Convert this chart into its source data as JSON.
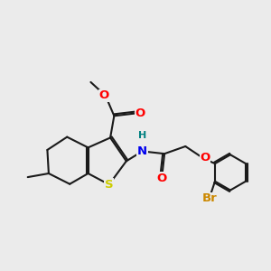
{
  "bg_color": "#ebebeb",
  "bond_color": "#1a1a1a",
  "bond_width": 1.5,
  "atom_colors": {
    "S": "#cccc00",
    "N": "#0000ee",
    "O": "#ff0000",
    "Br": "#cc8800",
    "H": "#008080",
    "C": "#1a1a1a"
  },
  "font_size": 9.5,
  "font_size_small": 8.0
}
